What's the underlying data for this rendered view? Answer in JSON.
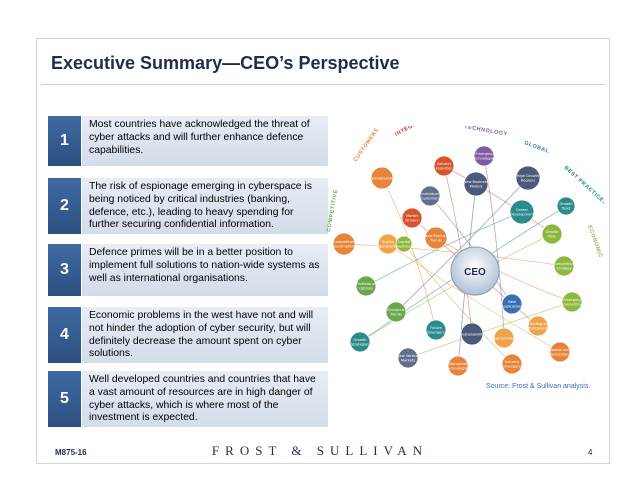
{
  "title": "Executive Summary—CEO’s Perspective",
  "items": [
    {
      "num": "1",
      "text": "Most countries have acknowledged the threat of cyber attacks and will further enhance defence capabilities."
    },
    {
      "num": "2",
      "text": "The risk of espionage emerging in cyberspace is being noticed by critical industries (banking, defence, etc.), leading to heavy spending for further securing confidential information."
    },
    {
      "num": "3",
      "text": "Defence primes will be in a better position to implement full solutions to nation-wide systems as well as international organisations."
    },
    {
      "num": "4",
      "text": "Economic problems in the west have not and will not hinder the adoption of cyber security, but will definitely decrease the amount spent on cyber solutions."
    },
    {
      "num": "5",
      "text": "Well developed countries and countries that have a vast amount of resources are in high danger of cyber attacks, which is where most of the investment is expected."
    }
  ],
  "diagram": {
    "center": "CEO",
    "ring_labels": [
      {
        "text": "CUSTOMERS",
        "color": "#e8843a"
      },
      {
        "text": "INTEGRATED INDUSTRY",
        "color": "#c0392b"
      },
      {
        "text": "TECHNOLOGY",
        "color": "#7d5ba6"
      },
      {
        "text": "GLOBAL",
        "color": "#2c7bb6"
      },
      {
        "text": "BEST PRACTICES",
        "color": "#1b8a8a"
      },
      {
        "text": "ECONOMIC",
        "color": "#8cb83c"
      },
      {
        "text": "COMPETITIVE",
        "color": "#6aa84f"
      }
    ],
    "nodes": [
      {
        "label": "Industry Evolution",
        "color": "#d9532c"
      },
      {
        "label": "Emerging Technologies",
        "color": "#7d5ba6"
      },
      {
        "label": "Demographics",
        "color": "#e8843a"
      },
      {
        "label": "Individual Customers",
        "color": "#5f6f8c"
      },
      {
        "label": "New Business Models",
        "color": "#4a5a78"
      },
      {
        "label": "High Growth Regions",
        "color": "#4a5a78"
      },
      {
        "label": "Market Drivers",
        "color": "#d9532c"
      },
      {
        "label": "Career Development",
        "color": "#2c8a8a"
      },
      {
        "label": "Growth Tools",
        "color": "#2c8a8a"
      },
      {
        "label": "Buying Behaviour",
        "color": "#f0a34a"
      },
      {
        "label": "Growth Pole",
        "color": "#8cb83c"
      },
      {
        "label": "New Product Trends",
        "color": "#e8843a"
      },
      {
        "label": "Competitive Benchmarking",
        "color": "#e8843a"
      },
      {
        "label": "Capital Investment",
        "color": "#8cb83c"
      },
      {
        "label": "Competitive Strategy",
        "color": "#8cb83c"
      },
      {
        "label": "Portfolio of Options",
        "color": "#6aa84f"
      },
      {
        "label": "Emerging Competition",
        "color": "#8cb83c"
      },
      {
        "label": "Economic Trends",
        "color": "#6aa84f"
      },
      {
        "label": "New Applications",
        "color": "#3a6fb8"
      },
      {
        "label": "Branding and Positioning",
        "color": "#f0a34a"
      },
      {
        "label": "Growth Strategies",
        "color": "#2c8a8a"
      },
      {
        "label": "Future Convergence",
        "color": "#2c8a8a"
      },
      {
        "label": "Sustainability",
        "color": "#4a5a78"
      },
      {
        "label": "Segmentation",
        "color": "#f0a34a"
      },
      {
        "label": "Needs and Perceptions",
        "color": "#e8843a"
      },
      {
        "label": "New Vertical Markets",
        "color": "#5f6f8c"
      },
      {
        "label": "Disruptive Technologies",
        "color": "#e8843a"
      },
      {
        "label": "Industry Convergence",
        "color": "#e8843a"
      }
    ]
  },
  "source": "Source: Frost & Sullivan analysis.",
  "footer_code": "M875-16",
  "brand": "FROST & SULLIVAN",
  "page_number": "4",
  "colors": {
    "title": "#1e2c4f",
    "number_box": "#3f6aa3",
    "text_box": "#dfe6f0",
    "source": "#3a6fb8"
  }
}
